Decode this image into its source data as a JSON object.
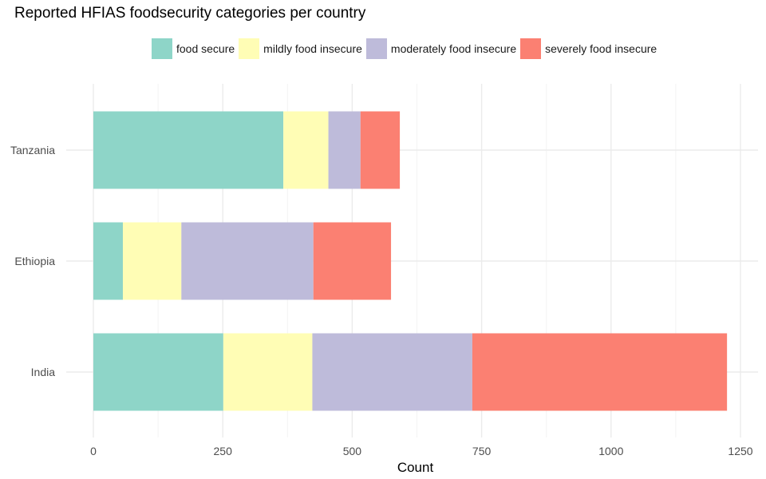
{
  "chart_data": {
    "type": "bar",
    "orientation": "horizontal",
    "stacked": true,
    "title": "Reported HFIAS foodsecurity categories per country",
    "xlabel": "Count",
    "ylabel": "",
    "categories": [
      "Tanzania",
      "Ethiopia",
      "India"
    ],
    "series": [
      {
        "name": "food secure",
        "color": "#8ED5C8",
        "values": [
          367,
          57,
          251
        ]
      },
      {
        "name": "mildly food insecure",
        "color": "#FFFDB5",
        "values": [
          87,
          113,
          172
        ]
      },
      {
        "name": "moderately food insecure",
        "color": "#BEBBDA",
        "values": [
          62,
          255,
          309
        ]
      },
      {
        "name": "severely food insecure",
        "color": "#FB8072",
        "values": [
          76,
          150,
          492
        ]
      }
    ],
    "xlim": [
      0,
      1260
    ],
    "xticks": [
      0,
      250,
      500,
      750,
      1000,
      1250
    ],
    "xtick_labels": [
      "0",
      "250",
      "500",
      "750",
      "1000",
      "1250"
    ],
    "grid": true,
    "legend_position": "top"
  }
}
